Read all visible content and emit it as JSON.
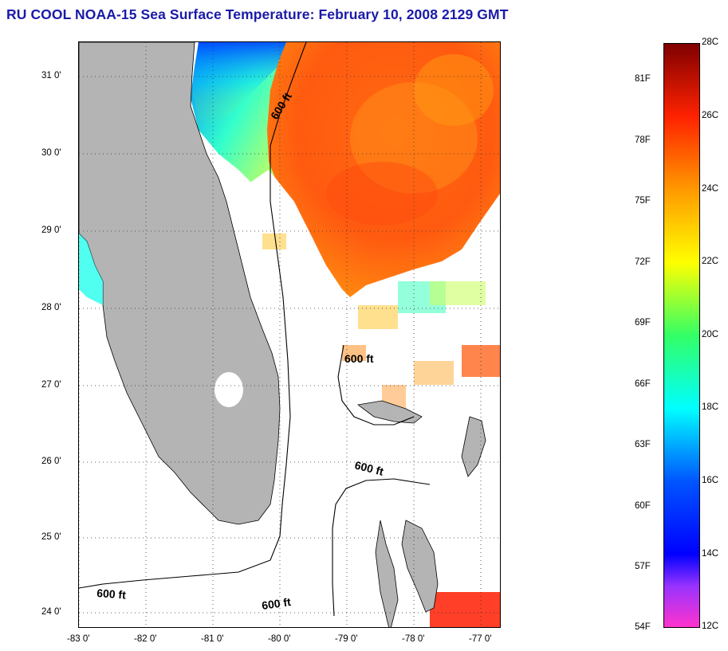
{
  "title": "RU COOL  NOAA-15  Sea Surface Temperature:  February 10, 2008 2129 GMT",
  "lat_labels": [
    "31 0'",
    "30 0'",
    "29 0'",
    "28 0'",
    "27 0'",
    "26 0'",
    "25 0'",
    "24 0'"
  ],
  "lon_labels": [
    "-83 0'",
    "-82 0'",
    "-81 0'",
    "-80 0'",
    "-79 0'",
    "-78 0'",
    "-77 0'"
  ],
  "contour_labels": [
    "600 ft",
    "600 ft",
    "600 ft",
    "600 ft",
    "600 ft"
  ],
  "colorbar": {
    "fahrenheit_labels": [
      "81F",
      "78F",
      "75F",
      "72F",
      "69F",
      "66F",
      "63F",
      "60F",
      "57F",
      "54F"
    ],
    "celsius_labels": [
      "28C",
      "26C",
      "24C",
      "22C",
      "20C",
      "18C",
      "16C",
      "14C",
      "12C"
    ],
    "range_c": [
      12,
      28
    ],
    "colors": {
      "c12": "#ff33cc",
      "c13": "#9933ff",
      "c14": "#0000ff",
      "c16": "#0055ff",
      "c18": "#00ffff",
      "c20": "#33ff66",
      "c22": "#ffff00",
      "c24": "#ff9900",
      "c26": "#ff2200",
      "c28": "#800000"
    }
  },
  "land_color": "#b4b4b4",
  "missing_color": "#ffffff",
  "grid": "dotted"
}
